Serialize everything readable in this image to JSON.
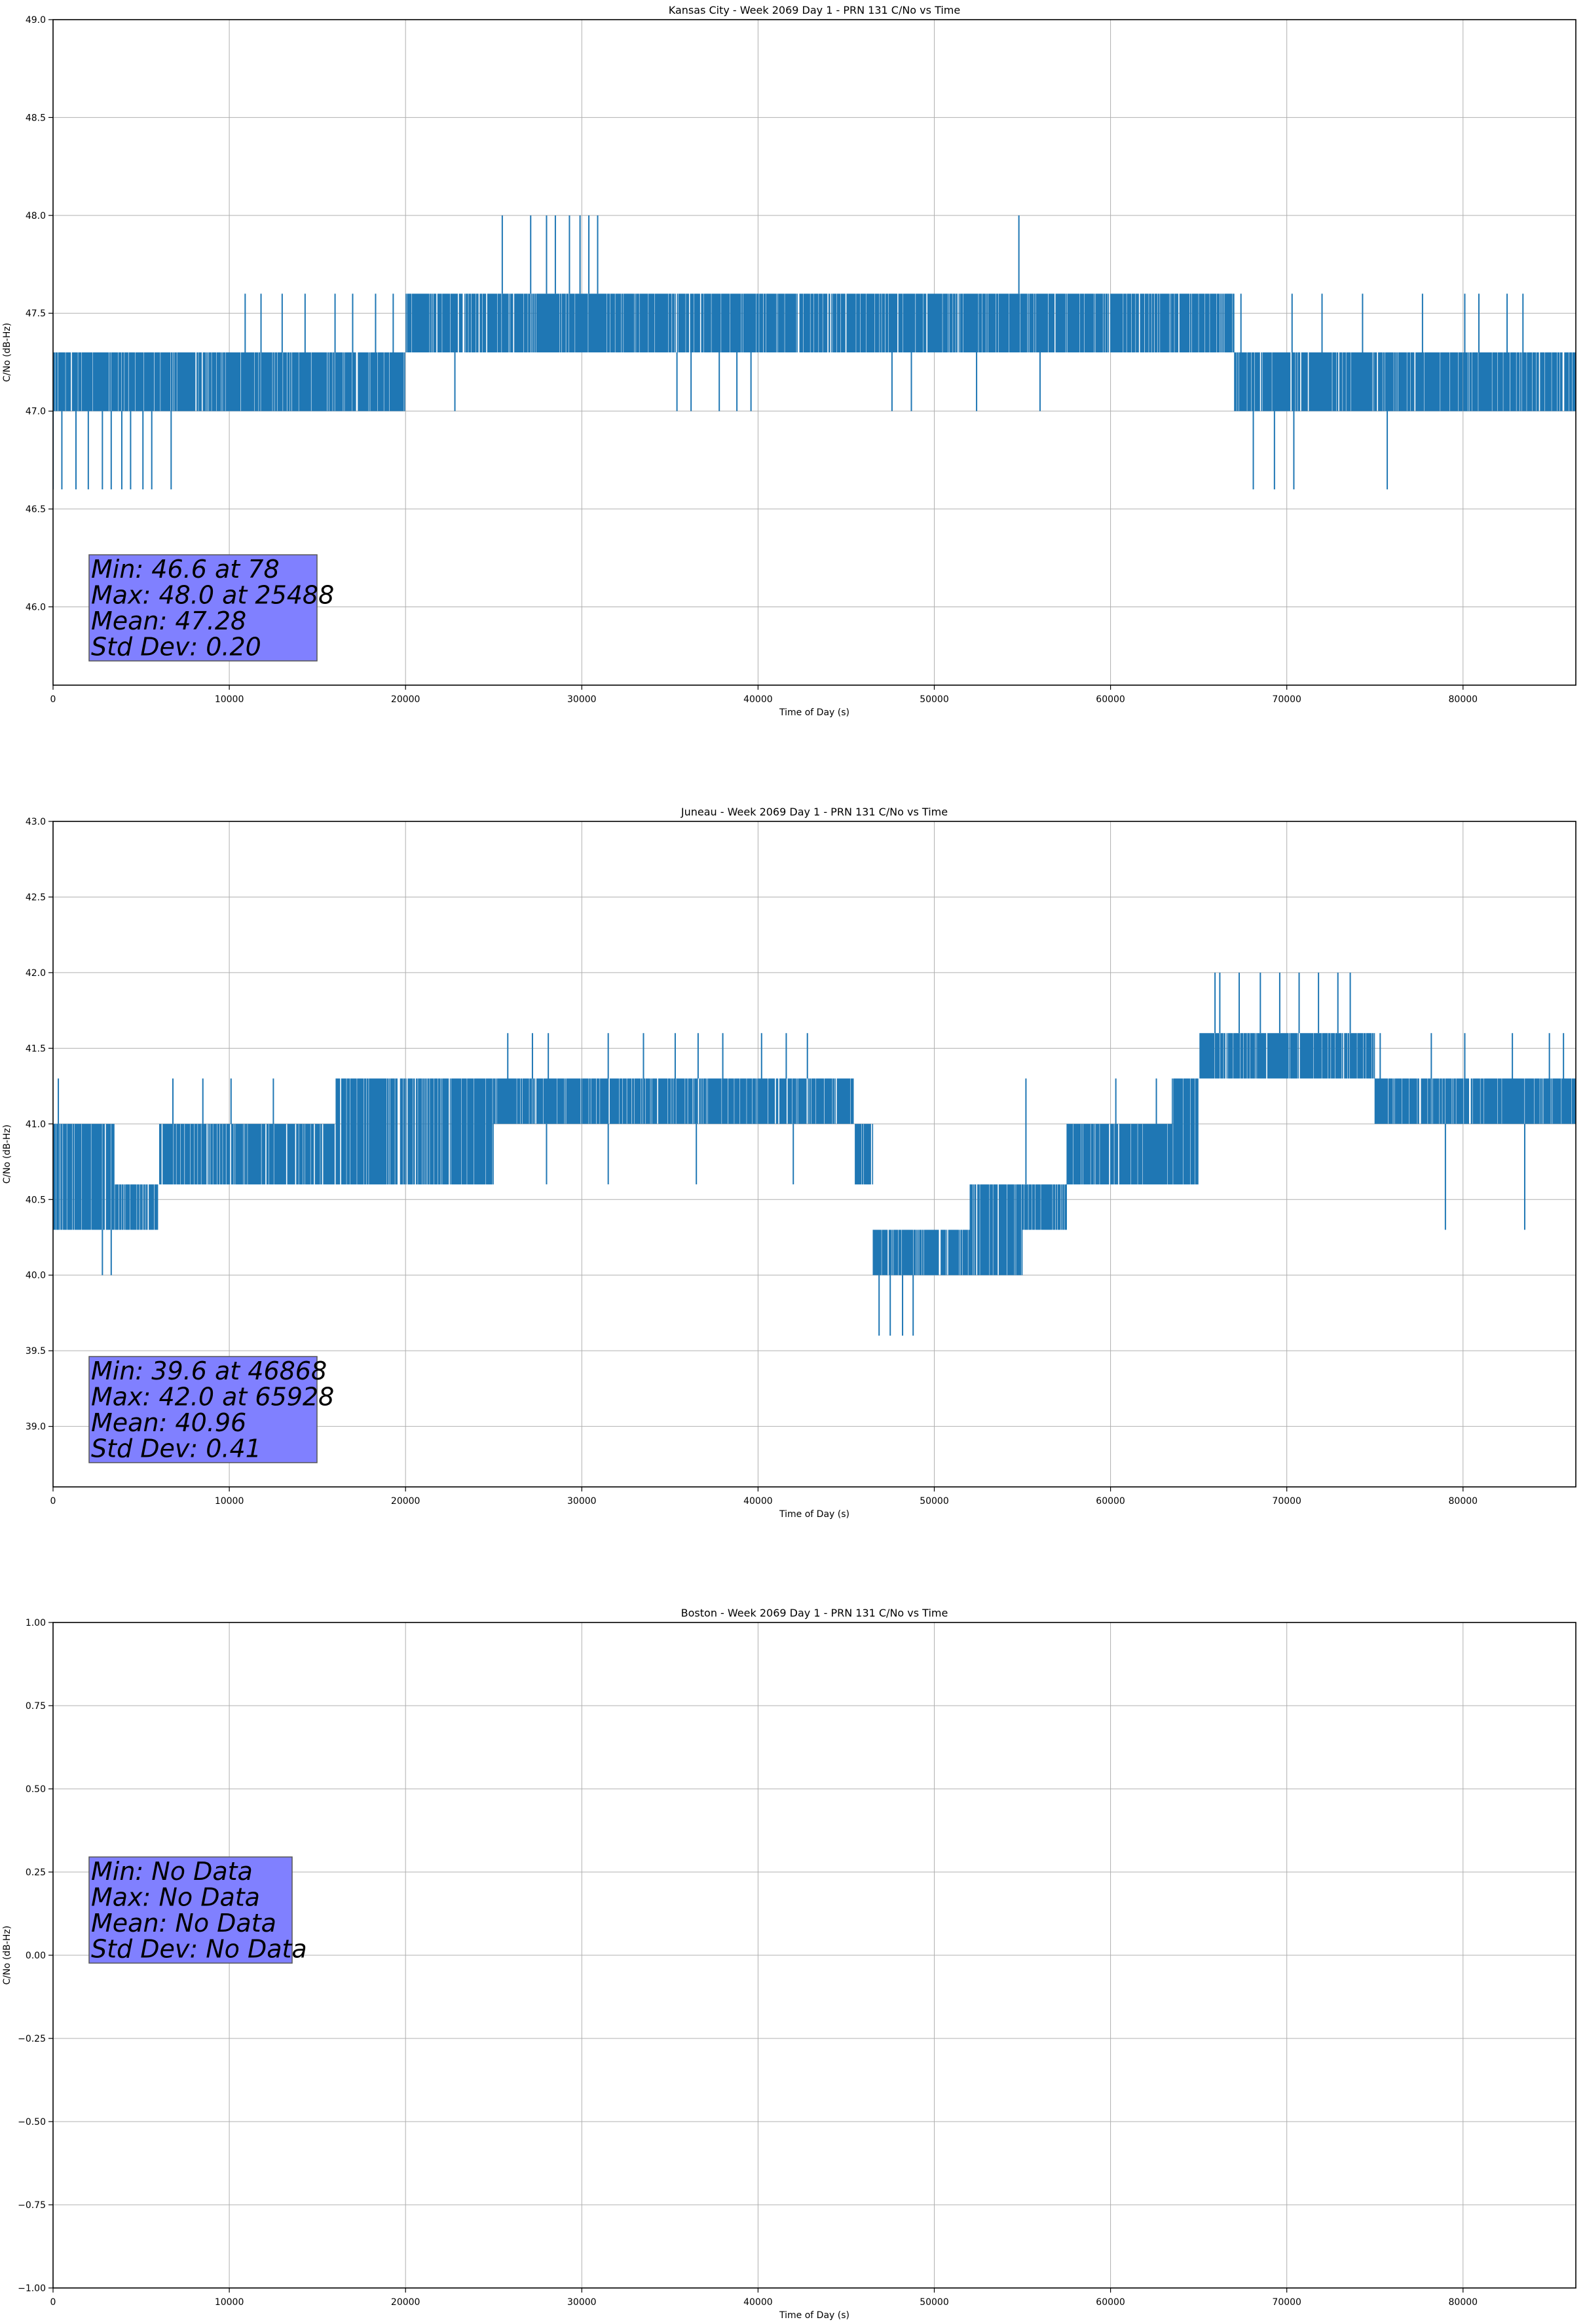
{
  "figure": {
    "line_color": "#1f77b4",
    "stats_box_color": "#8080ff",
    "grid_color": "#b0b0b0"
  },
  "chart_data": [
    {
      "type": "line",
      "title": "Kansas City - Week 2069 Day 1 - PRN 131 C/No vs Time",
      "xlabel": "Time of Day (s)",
      "ylabel": "C/No (dB-Hz)",
      "xlim": [
        0,
        86400
      ],
      "ylim": [
        45.6,
        49.0
      ],
      "xticks": [
        0,
        10000,
        20000,
        30000,
        40000,
        50000,
        60000,
        70000,
        80000
      ],
      "xtick_labels": [
        "0",
        "10000",
        "20000",
        "30000",
        "40000",
        "50000",
        "60000",
        "70000",
        "80000"
      ],
      "yticks": [
        46.0,
        46.5,
        47.0,
        47.5,
        48.0,
        48.5,
        49.0
      ],
      "ytick_labels": [
        "46.0",
        "46.5",
        "47.0",
        "47.5",
        "48.0",
        "48.5",
        "49.0"
      ],
      "grid": true,
      "series": [
        {
          "name": "C/No",
          "base_band": [
            [
              0,
              47.0,
              47.3
            ],
            [
              6800,
              47.0,
              47.3
            ],
            [
              20000,
              47.3,
              47.6
            ],
            [
              45000,
              47.3,
              47.6
            ],
            [
              57000,
              47.3,
              47.6
            ],
            [
              67000,
              47.0,
              47.3
            ],
            [
              86400,
              47.0,
              47.3
            ]
          ],
          "dips": [
            [
              0,
              46.6
            ],
            [
              500,
              46.6
            ],
            [
              1300,
              46.6
            ],
            [
              2000,
              46.6
            ],
            [
              2800,
              46.6
            ],
            [
              3300,
              46.6
            ],
            [
              3900,
              46.6
            ],
            [
              4400,
              46.6
            ],
            [
              5100,
              46.6
            ],
            [
              5600,
              46.6
            ],
            [
              6700,
              46.6
            ],
            [
              22800,
              47.0
            ],
            [
              35400,
              47.0
            ],
            [
              36200,
              47.0
            ],
            [
              37800,
              47.0
            ],
            [
              38800,
              47.0
            ],
            [
              39600,
              47.0
            ],
            [
              47600,
              47.0
            ],
            [
              48700,
              47.0
            ],
            [
              52400,
              47.0
            ],
            [
              56000,
              47.0
            ],
            [
              68100,
              46.6
            ],
            [
              69300,
              46.6
            ],
            [
              70400,
              46.6
            ],
            [
              75700,
              46.6
            ]
          ],
          "spikes": [
            [
              10900,
              47.6
            ],
            [
              11800,
              47.6
            ],
            [
              13000,
              47.6
            ],
            [
              14300,
              47.6
            ],
            [
              16000,
              47.6
            ],
            [
              17000,
              47.6
            ],
            [
              18300,
              47.6
            ],
            [
              19300,
              47.6
            ],
            [
              25488,
              48.0
            ],
            [
              27100,
              48.0
            ],
            [
              28000,
              48.0
            ],
            [
              28500,
              48.0
            ],
            [
              29300,
              48.0
            ],
            [
              29900,
              48.0
            ],
            [
              30400,
              48.0
            ],
            [
              30900,
              48.0
            ],
            [
              54800,
              48.0
            ],
            [
              58500,
              47.6
            ],
            [
              60000,
              47.6
            ],
            [
              61500,
              47.6
            ],
            [
              63000,
              47.6
            ],
            [
              64500,
              47.6
            ],
            [
              65800,
              47.6
            ],
            [
              67400,
              47.6
            ],
            [
              70300,
              47.6
            ],
            [
              72000,
              47.6
            ],
            [
              74300,
              47.6
            ],
            [
              77700,
              47.6
            ],
            [
              80100,
              47.6
            ],
            [
              80900,
              47.6
            ],
            [
              82500,
              47.6
            ],
            [
              83400,
              47.6
            ]
          ]
        }
      ],
      "stats": {
        "min": "Min: 46.6 at 78",
        "max": "Max: 48.0 at 25488",
        "mean": "Mean: 47.28",
        "std": "Std Dev: 0.20"
      }
    },
    {
      "type": "line",
      "title": "Juneau - Week 2069 Day 1 - PRN 131 C/No vs Time",
      "xlabel": "Time of Day (s)",
      "ylabel": "C/No (dB-Hz)",
      "xlim": [
        0,
        86400
      ],
      "ylim": [
        38.6,
        43.0
      ],
      "xticks": [
        0,
        10000,
        20000,
        30000,
        40000,
        50000,
        60000,
        70000,
        80000
      ],
      "xtick_labels": [
        "0",
        "10000",
        "20000",
        "30000",
        "40000",
        "50000",
        "60000",
        "70000",
        "80000"
      ],
      "yticks": [
        39.0,
        39.5,
        40.0,
        40.5,
        41.0,
        41.5,
        42.0,
        42.5,
        43.0
      ],
      "ytick_labels": [
        "39.0",
        "39.5",
        "40.0",
        "40.5",
        "41.0",
        "41.5",
        "42.0",
        "42.5",
        "43.0"
      ],
      "grid": true,
      "series": [
        {
          "name": "C/No",
          "base_band": [
            [
              0,
              40.3,
              41.0
            ],
            [
              2000,
              40.3,
              41.0
            ],
            [
              3500,
              40.3,
              40.6
            ],
            [
              6000,
              40.6,
              41.0
            ],
            [
              14500,
              40.6,
              41.0
            ],
            [
              16000,
              40.6,
              41.3
            ],
            [
              25000,
              41.0,
              41.3
            ],
            [
              44800,
              41.0,
              41.3
            ],
            [
              45500,
              40.6,
              41.0
            ],
            [
              46500,
              40.0,
              40.3
            ],
            [
              52000,
              40.0,
              40.6
            ],
            [
              55000,
              40.3,
              40.6
            ],
            [
              57500,
              40.6,
              41.0
            ],
            [
              63500,
              40.6,
              41.3
            ],
            [
              65000,
              41.3,
              41.6
            ],
            [
              74000,
              41.3,
              41.6
            ],
            [
              75000,
              41.0,
              41.3
            ],
            [
              86400,
              41.0,
              41.3
            ]
          ],
          "dips": [
            [
              2800,
              40.0
            ],
            [
              3300,
              40.0
            ],
            [
              46868,
              39.6
            ],
            [
              47500,
              39.6
            ],
            [
              48200,
              39.6
            ],
            [
              48800,
              39.6
            ],
            [
              79000,
              40.3
            ],
            [
              83500,
              40.3
            ],
            [
              20500,
              40.6
            ],
            [
              28000,
              40.6
            ],
            [
              31500,
              40.6
            ],
            [
              36500,
              40.6
            ],
            [
              42000,
              40.6
            ]
          ],
          "spikes": [
            [
              300,
              41.3
            ],
            [
              6800,
              41.3
            ],
            [
              8500,
              41.3
            ],
            [
              10100,
              41.3
            ],
            [
              12500,
              41.3
            ],
            [
              25800,
              41.6
            ],
            [
              27200,
              41.6
            ],
            [
              28100,
              41.6
            ],
            [
              31500,
              41.6
            ],
            [
              33500,
              41.6
            ],
            [
              35300,
              41.6
            ],
            [
              36600,
              41.6
            ],
            [
              38000,
              41.6
            ],
            [
              40200,
              41.6
            ],
            [
              41600,
              41.6
            ],
            [
              42800,
              41.6
            ],
            [
              55200,
              41.3
            ],
            [
              60300,
              41.3
            ],
            [
              62600,
              41.3
            ],
            [
              64200,
              41.3
            ],
            [
              66200,
              42.0
            ],
            [
              67300,
              42.0
            ],
            [
              65928,
              42.0
            ],
            [
              68500,
              42.0
            ],
            [
              69600,
              42.0
            ],
            [
              70700,
              42.0
            ],
            [
              71800,
              42.0
            ],
            [
              72900,
              42.0
            ],
            [
              73600,
              42.0
            ],
            [
              75300,
              41.6
            ],
            [
              78200,
              41.6
            ],
            [
              80100,
              41.6
            ],
            [
              82800,
              41.6
            ],
            [
              84900,
              41.6
            ],
            [
              85700,
              41.6
            ]
          ]
        }
      ],
      "stats": {
        "min": "Min: 39.6 at 46868",
        "max": "Max: 42.0 at 65928",
        "mean": "Mean: 40.96",
        "std": "Std Dev: 0.41"
      }
    },
    {
      "type": "line",
      "title": "Boston - Week 2069 Day 1 - PRN 131 C/No vs Time",
      "xlabel": "Time of Day (s)",
      "ylabel": "C/No (dB-Hz)",
      "xlim": [
        0,
        86400
      ],
      "ylim": [
        -1.0,
        1.0
      ],
      "xticks": [
        0,
        10000,
        20000,
        30000,
        40000,
        50000,
        60000,
        70000,
        80000
      ],
      "xtick_labels": [
        "0",
        "10000",
        "20000",
        "30000",
        "40000",
        "50000",
        "60000",
        "70000",
        "80000"
      ],
      "yticks": [
        -1.0,
        -0.75,
        -0.5,
        -0.25,
        0.0,
        0.25,
        0.5,
        0.75,
        1.0
      ],
      "ytick_labels": [
        "−1.00",
        "−0.75",
        "−0.50",
        "−0.25",
        "0.00",
        "0.25",
        "0.50",
        "0.75",
        "1.00"
      ],
      "grid": true,
      "series": [],
      "stats": {
        "min": "Min: No Data",
        "max": "Max: No Data",
        "mean": "Mean: No Data",
        "std": "Std Dev: No Data"
      }
    }
  ]
}
